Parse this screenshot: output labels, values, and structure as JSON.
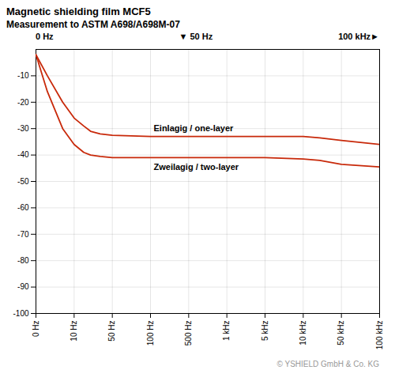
{
  "chart_data": {
    "type": "line",
    "title": "Magnetic shielding film MCF5",
    "subtitle": "Measurement to ASTM A698/A698M-07",
    "annotations": [
      "0 Hz",
      "▼ 50 Hz",
      "100 kHz►",
      "© YSHIELD GmbH & Co. KG"
    ],
    "x": [
      0,
      3,
      7,
      10,
      15,
      20,
      30,
      50,
      100,
      500,
      1000,
      5000,
      10000,
      20000,
      50000,
      100000
    ],
    "series": [
      {
        "name": "Einlagig / one-layer",
        "color": "#C8290A",
        "values": [
          -2,
          -10,
          -20,
          -26,
          -29,
          -31,
          -32,
          -32.5,
          -33,
          -33,
          -33,
          -33,
          -33,
          -33.5,
          -34.5,
          -36
        ]
      },
      {
        "name": "Zweilagig / two-layer",
        "color": "#C8290A",
        "values": [
          -2,
          -16,
          -30,
          -36,
          -39,
          -40,
          -40.5,
          -41,
          -41,
          -41,
          -41,
          -41,
          -41.5,
          -42,
          -43.5,
          -44.5
        ]
      }
    ],
    "xlim": [
      0,
      100000
    ],
    "xticks": [
      {
        "value": 0,
        "label": "0 Hz"
      },
      {
        "value": 10,
        "label": "10 Hz"
      },
      {
        "value": 50,
        "label": "50 Hz"
      },
      {
        "value": 100,
        "label": "100 Hz"
      },
      {
        "value": 500,
        "label": "500 Hz"
      },
      {
        "value": 1000,
        "label": "1 kHz"
      },
      {
        "value": 5000,
        "label": "5 kHz"
      },
      {
        "value": 10000,
        "label": "10 kHz"
      },
      {
        "value": 50000,
        "label": "50 kHz"
      },
      {
        "value": 100000,
        "label": "100 kHz"
      }
    ],
    "ylim": [
      -100,
      0
    ],
    "yticks": [
      -100,
      -90,
      -80,
      -70,
      -60,
      -50,
      -40,
      -30,
      -20,
      -10
    ],
    "grid": true
  }
}
